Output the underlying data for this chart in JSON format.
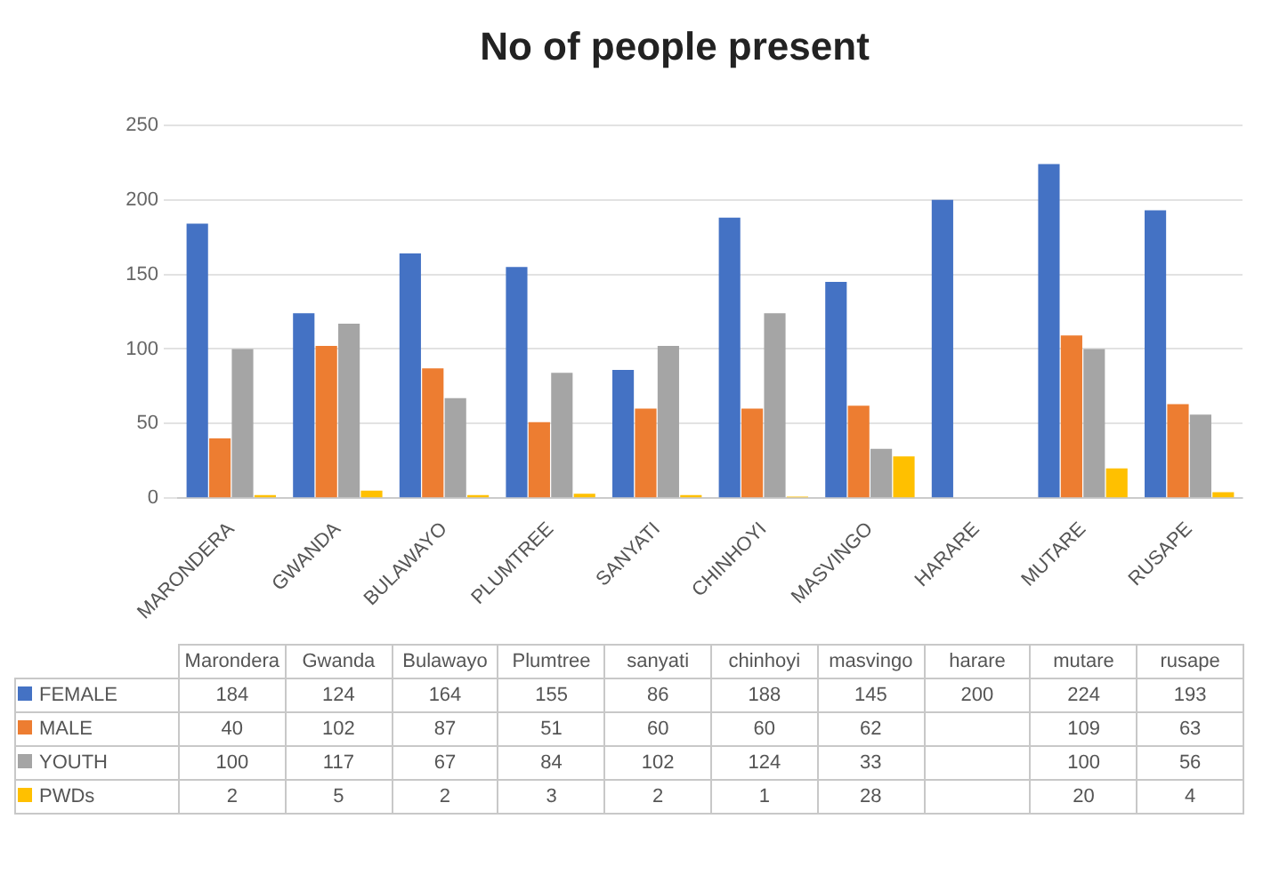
{
  "chart_data": {
    "type": "bar",
    "title": "No of people present",
    "categories": [
      "MARONDERA",
      "GWANDA",
      "BULAWAYO",
      "PLUMTREE",
      "SANYATI",
      "CHINHOYI",
      "MASVINGO",
      "HARARE",
      "MUTARE",
      "RUSAPE"
    ],
    "series": [
      {
        "name": "FEMALE",
        "color": "#4472c4",
        "values": [
          184,
          124,
          164,
          155,
          86,
          188,
          145,
          200,
          224,
          193
        ]
      },
      {
        "name": "MALE",
        "color": "#ed7d31",
        "values": [
          40,
          102,
          87,
          51,
          60,
          60,
          62,
          null,
          109,
          63
        ]
      },
      {
        "name": "YOUTH",
        "color": "#a5a5a5",
        "values": [
          100,
          117,
          67,
          84,
          102,
          124,
          33,
          null,
          100,
          56
        ]
      },
      {
        "name": "PWDs",
        "color": "#ffc000",
        "values": [
          2,
          5,
          2,
          3,
          2,
          1,
          28,
          null,
          20,
          4
        ]
      }
    ],
    "annotations": [
      "Marondera",
      "Gwanda",
      "Bulawayo",
      "Plumtree",
      "sanyati",
      "chinhoyi",
      "masvingo",
      "harare",
      "mutare",
      "rusape"
    ],
    "ylim": [
      0,
      250
    ],
    "yticks": [
      0,
      50,
      100,
      150,
      200,
      250
    ],
    "grid": "y",
    "legend": "bottom",
    "data_labels": true
  }
}
